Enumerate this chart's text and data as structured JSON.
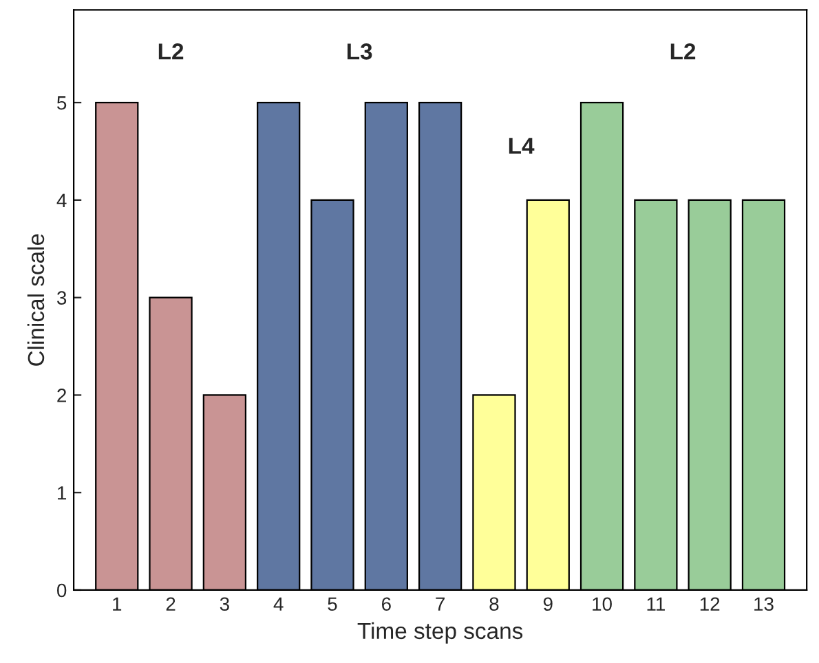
{
  "chart_data": {
    "type": "bar",
    "xlabel": "Time step scans",
    "ylabel": "Clinical scale",
    "categories": [
      "1",
      "2",
      "3",
      "4",
      "5",
      "6",
      "7",
      "8",
      "9",
      "10",
      "11",
      "12",
      "13"
    ],
    "series": [
      {
        "name": "L2",
        "color": "#c99494",
        "values": [
          5,
          3,
          2,
          null,
          null,
          null,
          null,
          null,
          null,
          null,
          null,
          null,
          null
        ]
      },
      {
        "name": "L3",
        "color": "#5f77a2",
        "values": [
          null,
          null,
          null,
          5,
          4,
          5,
          5,
          null,
          null,
          null,
          null,
          null,
          null
        ]
      },
      {
        "name": "L4",
        "color": "#ffff99",
        "values": [
          null,
          null,
          null,
          null,
          null,
          null,
          null,
          2,
          4,
          null,
          null,
          null,
          null
        ]
      },
      {
        "name": "L2",
        "color": "#99cc99",
        "values": [
          null,
          null,
          null,
          null,
          null,
          null,
          null,
          null,
          null,
          5,
          4,
          4,
          4
        ]
      }
    ],
    "ylim": [
      0,
      5.95
    ],
    "yticks": [
      0,
      1,
      2,
      3,
      4,
      5
    ],
    "grid": false,
    "legend": false
  }
}
